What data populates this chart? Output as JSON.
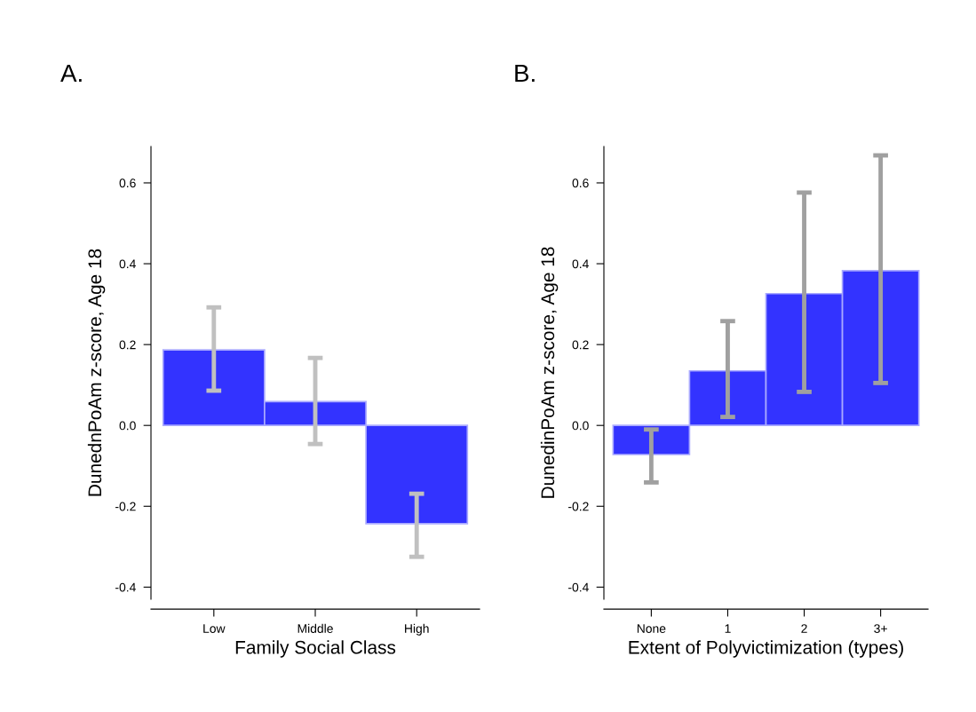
{
  "chart_data": [
    {
      "type": "bar",
      "title": "A.",
      "xlabel": "Family Social Class",
      "ylabel": "DunednPoAm z-score, Age 18",
      "categories": [
        "Low",
        "Middle",
        "High"
      ],
      "values": [
        0.187,
        0.059,
        -0.243
      ],
      "color": "#3333ff",
      "errors": [
        [
          0.086,
          0.292
        ],
        [
          -0.046,
          0.167
        ],
        [
          -0.325,
          -0.169
        ]
      ],
      "ylim": [
        -0.43,
        0.69
      ],
      "yticks": [
        {
          "value": -0.4,
          "label": "-0.4"
        },
        {
          "value": -0.2,
          "label": "-0.2"
        },
        {
          "value": 0.0,
          "label": "0.0"
        },
        0.2,
        0.4,
        0.6
      ],
      "grid": false
    },
    {
      "type": "bar",
      "title": "B.",
      "xlabel": "Extent of Polyvictimization (types)",
      "ylabel": "DunedinPoAm z-score, Age 18",
      "categories": [
        "None",
        "1",
        "2",
        "3+"
      ],
      "values": [
        -0.072,
        0.135,
        0.326,
        0.383
      ],
      "color": "#3333ff",
      "errors": [
        [
          -0.141,
          -0.01
        ],
        [
          0.021,
          0.258
        ],
        [
          0.083,
          0.576
        ],
        [
          0.105,
          0.668
        ]
      ],
      "ylim": [
        -0.43,
        0.69
      ],
      "yticks": [
        {
          "value": -0.4,
          "label": "-0.4"
        },
        {
          "value": -0.2,
          "label": "-0.2"
        },
        {
          "value": 0.0,
          "label": "0.0"
        },
        0.2,
        0.4,
        0.6
      ],
      "grid": false
    }
  ]
}
